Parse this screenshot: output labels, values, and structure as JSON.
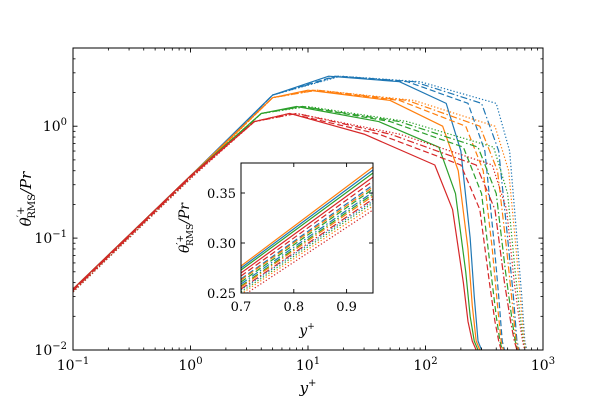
{
  "chart_data": [
    {
      "type": "line",
      "xscale": "log",
      "yscale": "log",
      "xlim": [
        0.1,
        1000
      ],
      "ylim": [
        0.01,
        5
      ],
      "xlabel_main": "y",
      "xlabel_sup": "+",
      "ylabel_theta": "θ",
      "ylabel_sup": "′+",
      "ylabel_sub": "RMS",
      "ylabel_tail": "/Pr",
      "x_ticks": [
        {
          "value": 0.1,
          "mant": "10",
          "exp": "−1"
        },
        {
          "value": 1,
          "mant": "10",
          "exp": "0"
        },
        {
          "value": 10,
          "mant": "10",
          "exp": "1"
        },
        {
          "value": 100,
          "mant": "10",
          "exp": "2"
        },
        {
          "value": 1000,
          "mant": "10",
          "exp": "3"
        }
      ],
      "y_ticks": [
        {
          "value": 0.01,
          "mant": "10",
          "exp": "−2"
        },
        {
          "value": 0.1,
          "mant": "10",
          "exp": "−1"
        },
        {
          "value": 1,
          "mant": "10",
          "exp": "0"
        }
      ],
      "colors": [
        "#1f77b4",
        "#ff7f0e",
        "#2ca02c",
        "#d62728"
      ],
      "series": [
        {
          "color": "#1f77b4",
          "dash": "solid",
          "x": [
            0.1,
            1,
            5,
            15,
            60,
            150,
            200,
            240,
            260,
            280,
            300
          ],
          "y": [
            0.035,
            0.36,
            1.9,
            2.8,
            2.5,
            1.6,
            0.6,
            0.1,
            0.03,
            0.012,
            0.01
          ]
        },
        {
          "color": "#1f77b4",
          "dash": "dashed",
          "x": [
            0.1,
            1,
            5,
            17,
            70,
            230,
            320,
            380,
            420,
            450,
            470
          ],
          "y": [
            0.034,
            0.35,
            1.9,
            2.8,
            2.5,
            1.6,
            0.6,
            0.1,
            0.03,
            0.012,
            0.01
          ]
        },
        {
          "color": "#1f77b4",
          "dash": "dashdot",
          "x": [
            0.1,
            1,
            5,
            18,
            80,
            300,
            420,
            500,
            560,
            600,
            630
          ],
          "y": [
            0.034,
            0.35,
            1.9,
            2.8,
            2.5,
            1.6,
            0.6,
            0.1,
            0.03,
            0.012,
            0.01
          ]
        },
        {
          "color": "#1f77b4",
          "dash": "dotted",
          "x": [
            0.1,
            1,
            5,
            19,
            90,
            400,
            520,
            600,
            660,
            700,
            730
          ],
          "y": [
            0.033,
            0.34,
            1.9,
            2.8,
            2.5,
            1.6,
            0.6,
            0.1,
            0.03,
            0.012,
            0.01
          ]
        },
        {
          "color": "#ff7f0e",
          "dash": "solid",
          "x": [
            0.1,
            1,
            5,
            10,
            50,
            140,
            190,
            230,
            250,
            270,
            290
          ],
          "y": [
            0.035,
            0.36,
            1.8,
            2.1,
            1.7,
            1.0,
            0.4,
            0.08,
            0.025,
            0.012,
            0.01
          ]
        },
        {
          "color": "#ff7f0e",
          "dash": "dashed",
          "x": [
            0.1,
            1,
            5,
            11,
            60,
            220,
            310,
            370,
            410,
            440,
            460
          ],
          "y": [
            0.034,
            0.35,
            1.8,
            2.1,
            1.7,
            1.0,
            0.4,
            0.08,
            0.025,
            0.012,
            0.01
          ]
        },
        {
          "color": "#ff7f0e",
          "dash": "dashdot",
          "x": [
            0.1,
            1,
            5,
            12,
            70,
            290,
            410,
            490,
            550,
            590,
            620
          ],
          "y": [
            0.034,
            0.35,
            1.8,
            2.1,
            1.7,
            1.0,
            0.4,
            0.08,
            0.025,
            0.012,
            0.01
          ]
        },
        {
          "color": "#ff7f0e",
          "dash": "dotted",
          "x": [
            0.1,
            1,
            5,
            12,
            80,
            390,
            510,
            590,
            650,
            690,
            720
          ],
          "y": [
            0.033,
            0.34,
            1.8,
            2.1,
            1.7,
            1.0,
            0.4,
            0.08,
            0.025,
            0.012,
            0.01
          ]
        },
        {
          "color": "#2ca02c",
          "dash": "solid",
          "x": [
            0.1,
            1,
            4,
            8,
            40,
            130,
            180,
            220,
            240,
            260,
            280
          ],
          "y": [
            0.035,
            0.36,
            1.3,
            1.5,
            1.1,
            0.65,
            0.25,
            0.05,
            0.02,
            0.012,
            0.01
          ]
        },
        {
          "color": "#2ca02c",
          "dash": "dashed",
          "x": [
            0.1,
            1,
            4,
            9,
            50,
            210,
            300,
            360,
            400,
            430,
            450
          ],
          "y": [
            0.034,
            0.35,
            1.3,
            1.5,
            1.1,
            0.65,
            0.25,
            0.05,
            0.02,
            0.012,
            0.01
          ]
        },
        {
          "color": "#2ca02c",
          "dash": "dashdot",
          "x": [
            0.1,
            1,
            4,
            9,
            60,
            280,
            400,
            480,
            540,
            580,
            610
          ],
          "y": [
            0.034,
            0.35,
            1.3,
            1.5,
            1.1,
            0.65,
            0.25,
            0.05,
            0.02,
            0.012,
            0.01
          ]
        },
        {
          "color": "#2ca02c",
          "dash": "dotted",
          "x": [
            0.1,
            1,
            4,
            10,
            70,
            380,
            500,
            580,
            640,
            680,
            710
          ],
          "y": [
            0.033,
            0.34,
            1.3,
            1.5,
            1.1,
            0.65,
            0.25,
            0.05,
            0.02,
            0.012,
            0.01
          ]
        },
        {
          "color": "#d62728",
          "dash": "solid",
          "x": [
            0.1,
            1,
            3.5,
            7,
            30,
            120,
            170,
            210,
            230,
            250,
            270
          ],
          "y": [
            0.035,
            0.36,
            1.1,
            1.3,
            0.85,
            0.45,
            0.18,
            0.04,
            0.018,
            0.012,
            0.01
          ]
        },
        {
          "color": "#d62728",
          "dash": "dashed",
          "x": [
            0.1,
            1,
            3.5,
            7,
            40,
            200,
            290,
            350,
            390,
            420,
            440
          ],
          "y": [
            0.034,
            0.35,
            1.1,
            1.3,
            0.85,
            0.45,
            0.18,
            0.04,
            0.018,
            0.012,
            0.01
          ]
        },
        {
          "color": "#d62728",
          "dash": "dashdot",
          "x": [
            0.1,
            1,
            3.5,
            8,
            50,
            270,
            390,
            470,
            530,
            570,
            600
          ],
          "y": [
            0.034,
            0.35,
            1.1,
            1.3,
            0.85,
            0.45,
            0.18,
            0.04,
            0.018,
            0.012,
            0.01
          ]
        },
        {
          "color": "#d62728",
          "dash": "dotted",
          "x": [
            0.1,
            1,
            3.5,
            8,
            60,
            370,
            490,
            570,
            630,
            670,
            700
          ],
          "y": [
            0.033,
            0.34,
            1.1,
            1.3,
            0.85,
            0.45,
            0.18,
            0.04,
            0.018,
            0.012,
            0.01
          ]
        }
      ]
    },
    {
      "type": "line",
      "role": "inset",
      "xscale": "linear",
      "yscale": "linear",
      "xlim": [
        0.7,
        0.95
      ],
      "ylim": [
        0.25,
        0.38
      ],
      "xlabel_main": "y",
      "xlabel_sup": "+",
      "ylabel_theta": "θ",
      "ylabel_sup": "′+",
      "ylabel_sub": "RMS",
      "ylabel_tail": "/Pr",
      "x_ticks": [
        {
          "value": 0.7,
          "label": "0.7"
        },
        {
          "value": 0.8,
          "label": "0.8"
        },
        {
          "value": 0.9,
          "label": "0.9"
        }
      ],
      "y_ticks": [
        {
          "value": 0.25,
          "label": "0.25"
        },
        {
          "value": 0.3,
          "label": "0.30"
        },
        {
          "value": 0.35,
          "label": "0.35"
        }
      ],
      "series": [
        {
          "color": "#ff7f0e",
          "dash": "solid",
          "x": [
            0.7,
            0.95
          ],
          "y": [
            0.277,
            0.376
          ]
        },
        {
          "color": "#1f77b4",
          "dash": "solid",
          "x": [
            0.7,
            0.95
          ],
          "y": [
            0.275,
            0.373
          ]
        },
        {
          "color": "#2ca02c",
          "dash": "solid",
          "x": [
            0.7,
            0.95
          ],
          "y": [
            0.273,
            0.37
          ]
        },
        {
          "color": "#d62728",
          "dash": "solid",
          "x": [
            0.7,
            0.95
          ],
          "y": [
            0.27,
            0.366
          ]
        },
        {
          "color": "#d62728",
          "dash": "dashed",
          "x": [
            0.7,
            0.95
          ],
          "y": [
            0.267,
            0.362
          ]
        },
        {
          "color": "#1f77b4",
          "dash": "dashed",
          "x": [
            0.7,
            0.95
          ],
          "y": [
            0.264,
            0.358
          ]
        },
        {
          "color": "#ff7f0e",
          "dash": "dashed",
          "x": [
            0.7,
            0.95
          ],
          "y": [
            0.263,
            0.356
          ]
        },
        {
          "color": "#2ca02c",
          "dash": "dashed",
          "x": [
            0.7,
            0.95
          ],
          "y": [
            0.261,
            0.354
          ]
        },
        {
          "color": "#1f77b4",
          "dash": "dashdot",
          "x": [
            0.7,
            0.95
          ],
          "y": [
            0.259,
            0.351
          ]
        },
        {
          "color": "#2ca02c",
          "dash": "dashdot",
          "x": [
            0.7,
            0.95
          ],
          "y": [
            0.257,
            0.349
          ]
        },
        {
          "color": "#ff7f0e",
          "dash": "dashdot",
          "x": [
            0.7,
            0.95
          ],
          "y": [
            0.256,
            0.347
          ]
        },
        {
          "color": "#d62728",
          "dash": "dashdot",
          "x": [
            0.7,
            0.95
          ],
          "y": [
            0.254,
            0.344
          ]
        },
        {
          "color": "#1f77b4",
          "dash": "dotted",
          "x": [
            0.7,
            0.95
          ],
          "y": [
            0.253,
            0.342
          ]
        },
        {
          "color": "#2ca02c",
          "dash": "dotted",
          "x": [
            0.7,
            0.95
          ],
          "y": [
            0.251,
            0.34
          ]
        },
        {
          "color": "#ff7f0e",
          "dash": "dotted",
          "x": [
            0.7,
            0.95
          ],
          "y": [
            0.249,
            0.337
          ]
        },
        {
          "color": "#d62728",
          "dash": "dotted",
          "x": [
            0.7,
            0.95
          ],
          "y": [
            0.246,
            0.333
          ]
        }
      ]
    }
  ]
}
